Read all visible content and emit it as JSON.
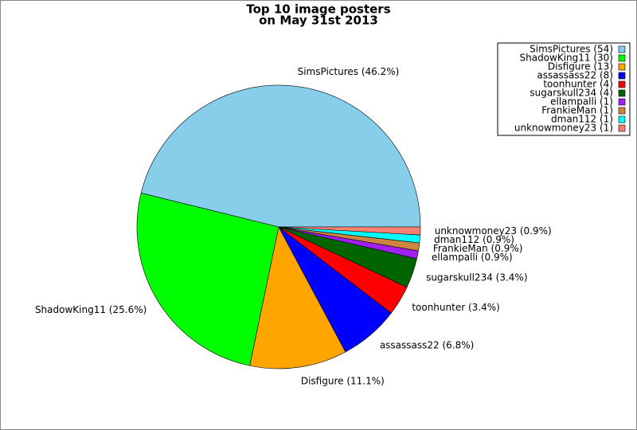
{
  "chart_data": {
    "type": "pie",
    "title": [
      "Top 10 image posters",
      "on May 31st 2013"
    ],
    "categories": [
      "SimsPictures (54)",
      "ShadowKing11 (30)",
      "Disfigure (13)",
      "assassass22 (8)",
      "toonhunter (4)",
      "sugarskull234 (4)",
      "ellampalli (1)",
      "FrankieMan (1)",
      "dman112 (1)",
      "unknowmoney23 (1)"
    ],
    "values": [
      46.2,
      25.6,
      11.1,
      6.8,
      3.4,
      3.4,
      0.9,
      0.9,
      0.9,
      0.9
    ],
    "value_labels": [
      "SimsPictures (46.2%)",
      "ShadowKing11 (25.6%)",
      "Disfigure (11.1%)",
      "assassass22 (6.8%)",
      "toonhunter (3.4%)",
      "sugarskull234 (3.4%)",
      "ellampalli (0.9%)",
      "FrankieMan (0.9%)",
      "dman112 (0.9%)",
      "unknowmoney23 (0.9%)"
    ],
    "colors": [
      "#87ceeb",
      "#00ff00",
      "#ffa500",
      "#0000ff",
      "#ff0000",
      "#006400",
      "#a020f0",
      "#cd853f",
      "#00ffff",
      "#fa8072"
    ],
    "legend": "upper right"
  }
}
